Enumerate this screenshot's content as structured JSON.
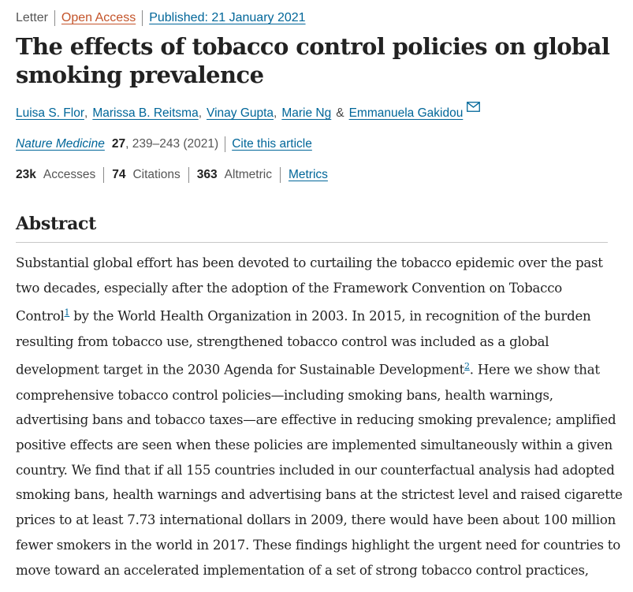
{
  "meta": {
    "type": "Letter",
    "open_access": "Open Access",
    "published": "Published: 21 January 2021"
  },
  "title": {
    "line1": "The effects of tobacco control policies on global",
    "line2": "smoking prevalence"
  },
  "authors": [
    "Luisa S. Flor",
    "Marissa B. Reitsma",
    "Vinay Gupta",
    "Marie Ng",
    "Emmanuela Gakidou"
  ],
  "authors_amp": "&",
  "citation": {
    "journal": "Nature Medicine",
    "volume": "27",
    "pages": ", 239–243 (2021)",
    "cite_link": "Cite this article"
  },
  "metrics": {
    "accesses_value": "23k",
    "accesses_label": "Accesses",
    "citations_value": "74",
    "citations_label": "Citations",
    "altmetric_value": "363",
    "altmetric_label": "Altmetric",
    "metrics_link": "Metrics"
  },
  "abstract": {
    "heading": "Abstract",
    "l1": "Substantial global effort has been devoted to curtailing the tobacco epidemic over the past",
    "l2": "two decades, especially after the adoption of the Framework Convention on Tobacco",
    "l3a": "Control",
    "ref1": "1",
    "l3b": " by the World Health Organization in 2003. In 2015, in recognition of the burden",
    "l4": "resulting from tobacco use, strengthened tobacco control was included as a global",
    "l5a": "development target in the 2030 Agenda for Sustainable Development",
    "ref2": "2",
    "l5b": ". Here we show that",
    "l6": "comprehensive tobacco control policies—including smoking bans, health warnings,",
    "l7": "advertising bans and tobacco taxes—are effective in reducing smoking prevalence; amplified",
    "l8": "positive effects are seen when these policies are implemented simultaneously within a given",
    "l9": "country. We find that if all 155 countries included in our counterfactual analysis had adopted",
    "l10": "smoking bans, health warnings and advertising bans at the strictest level and raised cigarette",
    "l11": "prices to at least 7.73 international dollars in 2009, there would have been about 100 million",
    "l12": "fewer smokers in the world in 2017. These findings highlight the urgent need for countries to",
    "l13": "move toward an accelerated implementation of a set of strong tobacco control practices,"
  },
  "colors": {
    "link": "#006699",
    "open_access": "#c4542a",
    "text": "#222222"
  },
  "icons": {
    "author_contact": "mail-icon"
  }
}
